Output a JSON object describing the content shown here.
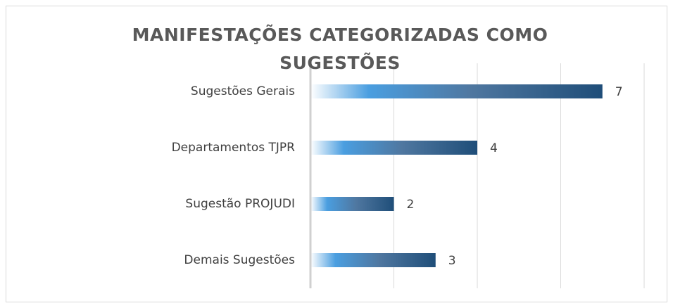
{
  "chart_data": {
    "type": "bar",
    "orientation": "horizontal",
    "title": "MANIFESTAÇÕES CATEGORIZADAS COMO SUGESTÕES",
    "categories": [
      "Sugestões Gerais",
      "Departamentos TJPR",
      "Sugestão PROJUDI",
      "Demais Sugestões"
    ],
    "values": [
      7,
      4,
      2,
      3
    ],
    "color": "#1f4e79",
    "xlim": [
      0,
      8
    ],
    "xticks": [
      0,
      2,
      4,
      6,
      8
    ],
    "grid": true
  }
}
